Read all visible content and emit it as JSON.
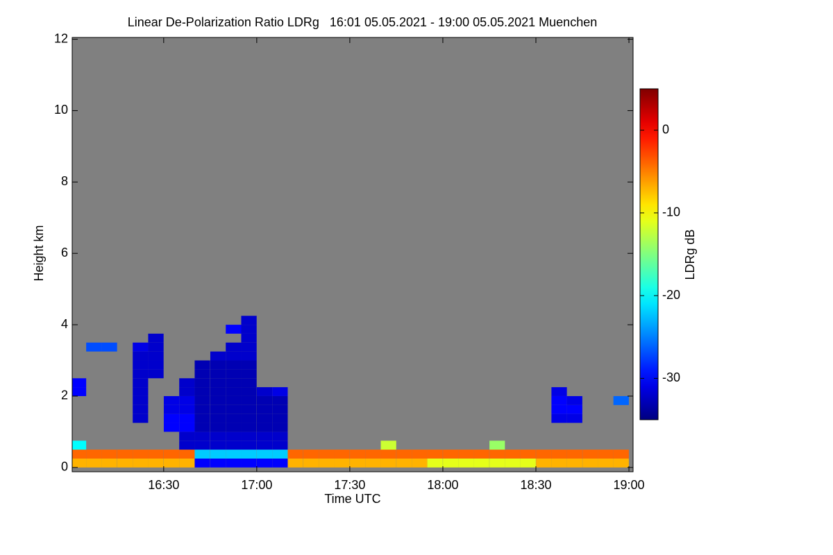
{
  "chart_data": {
    "type": "heatmap",
    "title": "Linear De-Polarization Ratio LDRg   16:01 05.05.2021 - 19:00 05.05.2021 Muenchen",
    "x_label": "Time UTC",
    "y_label": "Height km",
    "colorbar_label": "LDRg dB",
    "xlim": [
      16.0083,
      19.0222
    ],
    "ylim": [
      -0.12,
      12.05
    ],
    "zlim": [
      -35,
      5
    ],
    "xticks": [
      {
        "value": 16.5,
        "label": "16:30"
      },
      {
        "value": 17.0,
        "label": "17:00"
      },
      {
        "value": 17.5,
        "label": "17:30"
      },
      {
        "value": 18.0,
        "label": "18:00"
      },
      {
        "value": 18.5,
        "label": "18:30"
      },
      {
        "value": 19.0,
        "label": "19:00"
      }
    ],
    "yticks": [
      0,
      2,
      4,
      6,
      8,
      10,
      12
    ],
    "zticks": [
      0,
      -10,
      -20,
      -30
    ],
    "background": "#808080",
    "x": [
      16.042,
      16.125,
      16.208,
      16.292,
      16.375,
      16.458,
      16.542,
      16.625,
      16.708,
      16.792,
      16.875,
      16.958,
      17.042,
      17.125,
      17.208,
      17.292,
      17.375,
      17.458,
      17.542,
      17.625,
      17.708,
      17.792,
      17.875,
      17.958,
      18.042,
      18.125,
      18.208,
      18.292,
      18.375,
      18.458,
      18.542,
      18.625,
      18.708,
      18.792,
      18.875,
      18.958
    ],
    "y": [
      0.125,
      0.375,
      0.625,
      0.875,
      1.125,
      1.375,
      1.625,
      1.875,
      2.125,
      2.375,
      2.625,
      2.875,
      3.125,
      3.375,
      3.625,
      3.875,
      4.125
    ],
    "values": [
      [
        -7,
        -7,
        -7,
        -7,
        -7,
        -7,
        -7,
        -7,
        -30,
        -30,
        -30,
        -30,
        -30,
        -30,
        -7,
        -7,
        -7,
        -7,
        -7,
        -7,
        -7,
        -7,
        -7,
        -11,
        -11,
        -11,
        -11,
        -11,
        -11,
        -11,
        -7,
        -7,
        -7,
        -7,
        -7,
        -7
      ],
      [
        -4,
        -4,
        -4,
        -4,
        -4,
        -4,
        -4,
        -4,
        -22,
        -22,
        -22,
        -22,
        -22,
        -22,
        -4,
        -4,
        -4,
        -4,
        -4,
        -4,
        -4,
        -4,
        -4,
        -4,
        -4,
        -4,
        -4,
        -4,
        -4,
        -4,
        -4,
        -4,
        -4,
        -4,
        -4,
        -4
      ],
      [
        -20,
        null,
        null,
        null,
        null,
        null,
        null,
        -32,
        -32,
        -32,
        -32,
        -32,
        -32,
        -32,
        null,
        null,
        null,
        null,
        null,
        null,
        -12,
        null,
        null,
        null,
        null,
        null,
        null,
        -14,
        null,
        null,
        null,
        null,
        null,
        null,
        null,
        null
      ],
      [
        null,
        null,
        null,
        null,
        null,
        null,
        null,
        -32,
        -32,
        -32,
        -32,
        -32,
        -32,
        -32,
        null,
        null,
        null,
        null,
        null,
        null,
        null,
        null,
        null,
        null,
        null,
        null,
        null,
        null,
        null,
        null,
        null,
        null,
        null,
        null,
        null,
        null
      ],
      [
        null,
        null,
        null,
        null,
        null,
        null,
        -30,
        -30,
        -33,
        -33,
        -33,
        -33,
        -33,
        -33,
        null,
        null,
        null,
        null,
        null,
        null,
        null,
        null,
        null,
        null,
        null,
        null,
        null,
        null,
        null,
        null,
        null,
        null,
        null,
        null,
        null,
        null
      ],
      [
        null,
        null,
        null,
        null,
        -32,
        null,
        -30,
        -30,
        -33,
        -33,
        -33,
        -33,
        -33,
        -33,
        null,
        null,
        null,
        null,
        null,
        null,
        null,
        null,
        null,
        null,
        null,
        null,
        null,
        null,
        null,
        null,
        null,
        -31,
        -31,
        null,
        null,
        null
      ],
      [
        null,
        null,
        null,
        null,
        -32,
        null,
        -31,
        -31,
        -33,
        -33,
        -33,
        -33,
        -33,
        -33,
        null,
        null,
        null,
        null,
        null,
        null,
        null,
        null,
        null,
        null,
        null,
        null,
        null,
        null,
        null,
        null,
        null,
        -30,
        -30,
        null,
        null,
        null
      ],
      [
        null,
        null,
        null,
        null,
        -32,
        null,
        -31,
        -31,
        -33,
        -33,
        -33,
        -33,
        -33,
        -33,
        null,
        null,
        null,
        null,
        null,
        null,
        null,
        null,
        null,
        null,
        null,
        null,
        null,
        null,
        null,
        null,
        null,
        -30,
        -31,
        null,
        null,
        -26
      ],
      [
        -30,
        null,
        null,
        null,
        -32,
        null,
        null,
        -32,
        -33,
        -33,
        -33,
        -33,
        -32,
        -31,
        null,
        null,
        null,
        null,
        null,
        null,
        null,
        null,
        null,
        null,
        null,
        null,
        null,
        null,
        null,
        null,
        null,
        -31,
        null,
        null,
        null,
        null
      ],
      [
        -30,
        null,
        null,
        null,
        -32,
        null,
        null,
        -32,
        -33,
        -33,
        -33,
        -33,
        null,
        null,
        null,
        null,
        null,
        null,
        null,
        null,
        null,
        null,
        null,
        null,
        null,
        null,
        null,
        null,
        null,
        null,
        null,
        null,
        null,
        null,
        null,
        null
      ],
      [
        null,
        null,
        null,
        null,
        -32,
        -32,
        null,
        null,
        -33,
        -33,
        -33,
        -33,
        null,
        null,
        null,
        null,
        null,
        null,
        null,
        null,
        null,
        null,
        null,
        null,
        null,
        null,
        null,
        null,
        null,
        null,
        null,
        null,
        null,
        null,
        null,
        null
      ],
      [
        null,
        null,
        null,
        null,
        -32,
        -32,
        null,
        null,
        -33,
        -33,
        -33,
        -33,
        null,
        null,
        null,
        null,
        null,
        null,
        null,
        null,
        null,
        null,
        null,
        null,
        null,
        null,
        null,
        null,
        null,
        null,
        null,
        null,
        null,
        null,
        null,
        null
      ],
      [
        null,
        null,
        null,
        null,
        -32,
        -32,
        null,
        null,
        null,
        -32,
        -32,
        -32,
        null,
        null,
        null,
        null,
        null,
        null,
        null,
        null,
        null,
        null,
        null,
        null,
        null,
        null,
        null,
        null,
        null,
        null,
        null,
        null,
        null,
        null,
        null,
        null
      ],
      [
        null,
        -27,
        -27,
        null,
        -31,
        -32,
        null,
        null,
        null,
        null,
        -32,
        -32,
        null,
        null,
        null,
        null,
        null,
        null,
        null,
        null,
        null,
        null,
        null,
        null,
        null,
        null,
        null,
        null,
        null,
        null,
        null,
        null,
        null,
        null,
        null,
        null
      ],
      [
        null,
        null,
        null,
        null,
        null,
        -32,
        null,
        null,
        null,
        null,
        null,
        -32,
        null,
        null,
        null,
        null,
        null,
        null,
        null,
        null,
        null,
        null,
        null,
        null,
        null,
        null,
        null,
        null,
        null,
        null,
        null,
        null,
        null,
        null,
        null,
        null
      ],
      [
        null,
        null,
        null,
        null,
        null,
        null,
        null,
        null,
        null,
        null,
        -30,
        -32,
        null,
        null,
        null,
        null,
        null,
        null,
        null,
        null,
        null,
        null,
        null,
        null,
        null,
        null,
        null,
        null,
        null,
        null,
        null,
        null,
        null,
        null,
        null,
        null
      ],
      [
        null,
        null,
        null,
        null,
        null,
        null,
        null,
        null,
        null,
        null,
        null,
        -32,
        null,
        null,
        null,
        null,
        null,
        null,
        null,
        null,
        null,
        null,
        null,
        null,
        null,
        null,
        null,
        null,
        null,
        null,
        null,
        null,
        null,
        null,
        null,
        null
      ]
    ]
  }
}
